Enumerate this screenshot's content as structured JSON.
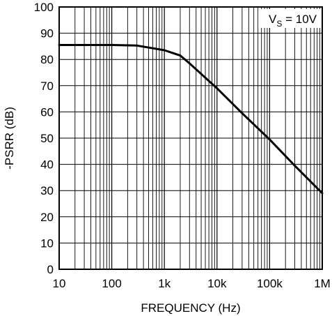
{
  "chart_data": {
    "type": "line",
    "title": "",
    "xlabel": "FREQUENCY (Hz)",
    "ylabel": "-PSRR (dB)",
    "x_scale": "log",
    "xlim": [
      10,
      1000000
    ],
    "ylim": [
      0,
      100
    ],
    "grid": true,
    "x_ticks": [
      10,
      100,
      1000,
      10000,
      100000,
      1000000
    ],
    "x_tick_labels": [
      "10",
      "100",
      "1k",
      "10k",
      "100k",
      "1M"
    ],
    "y_ticks": [
      0,
      10,
      20,
      30,
      40,
      50,
      60,
      70,
      80,
      90,
      100
    ],
    "y_tick_labels": [
      "0",
      "10",
      "20",
      "30",
      "40",
      "50",
      "60",
      "70",
      "80",
      "90",
      "100"
    ],
    "annotation": {
      "prefix": "V",
      "subscript": "S",
      "suffix": " = 10V"
    },
    "series": [
      {
        "color": "#000000",
        "x": [
          10,
          100,
          300,
          1000,
          2000,
          3000,
          10000,
          30000,
          100000,
          300000,
          1000000
        ],
        "y": [
          85.5,
          85.5,
          85.3,
          83.5,
          81.5,
          78.5,
          69,
          59.5,
          49.5,
          39.5,
          29
        ]
      }
    ]
  }
}
